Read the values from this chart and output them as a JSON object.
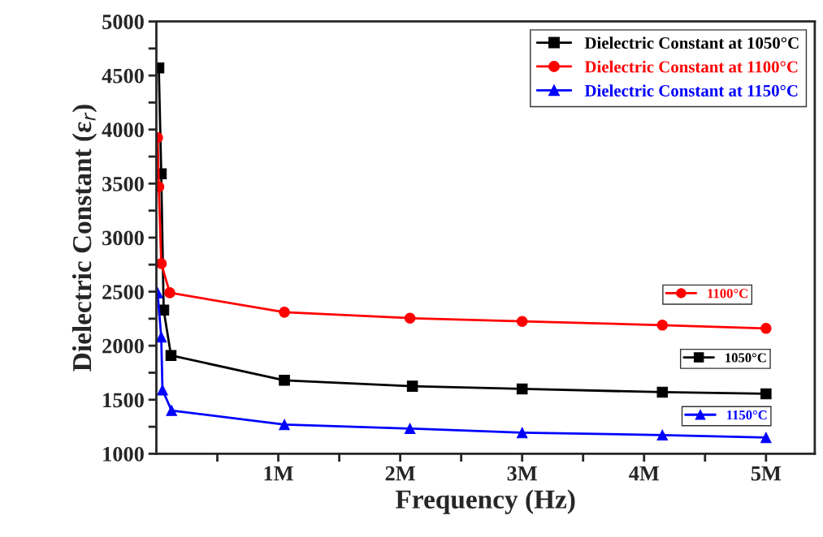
{
  "chart_data": {
    "type": "line",
    "xlabel": "Frequency (Hz)",
    "ylabel": "Dielectric Constant (ε$_{r}$)",
    "xlim": [
      0,
      5400000
    ],
    "ylim": [
      1000,
      5000
    ],
    "xticks": [
      {
        "value": 500000,
        "label": null
      },
      {
        "value": 1000000,
        "label": "1M"
      },
      {
        "value": 1500000,
        "label": null
      },
      {
        "value": 2000000,
        "label": "2M"
      },
      {
        "value": 2500000,
        "label": null
      },
      {
        "value": 3000000,
        "label": "3M"
      },
      {
        "value": 3500000,
        "label": null
      },
      {
        "value": 4000000,
        "label": "4M"
      },
      {
        "value": 4500000,
        "label": null
      },
      {
        "value": 5000000,
        "label": "5M"
      }
    ],
    "yticks": [
      1000,
      {
        "value": 1250,
        "label": null
      },
      1500,
      {
        "value": 1750,
        "label": null
      },
      2000,
      {
        "value": 2250,
        "label": null
      },
      2500,
      {
        "value": 2750,
        "label": null
      },
      3000,
      {
        "value": 3250,
        "label": null
      },
      3500,
      {
        "value": 3750,
        "label": null
      },
      4000,
      {
        "value": 4250,
        "label": null
      },
      4500,
      {
        "value": 4750,
        "label": null
      },
      5000
    ],
    "grid": false,
    "legend": "top right",
    "line_style": "solid",
    "series": [
      {
        "name": "Dielectric Constant at 1050°C",
        "color": "#000000",
        "marker": "square",
        "x": [
          20000,
          40000,
          60000,
          120000,
          1050000,
          2100000,
          3000000,
          4150000,
          5000000
        ],
        "values": [
          4570,
          3590,
          2330,
          1910,
          1680,
          1625,
          1600,
          1570,
          1555
        ]
      },
      {
        "name": "Dielectric Constant at 1100°C",
        "color": "#ff0000",
        "marker": "circle",
        "x": [
          10000,
          20000,
          40000,
          110000,
          1050000,
          2080000,
          3000000,
          4150000,
          5000000
        ],
        "values": [
          3925,
          3470,
          2760,
          2490,
          2310,
          2255,
          2225,
          2190,
          2160
        ]
      },
      {
        "name": "Dielectric Constant at 1150°C",
        "color": "#0000ff",
        "marker": "triangle",
        "x": [
          10000,
          40000,
          50000,
          125000,
          1050000,
          2080000,
          3000000,
          4150000,
          5000000
        ],
        "values": [
          2490,
          2080,
          1590,
          1400,
          1270,
          1233,
          1195,
          1173,
          1150
        ]
      }
    ],
    "annotations": [
      "1100°C",
      "1050°C",
      "1150°C"
    ]
  }
}
